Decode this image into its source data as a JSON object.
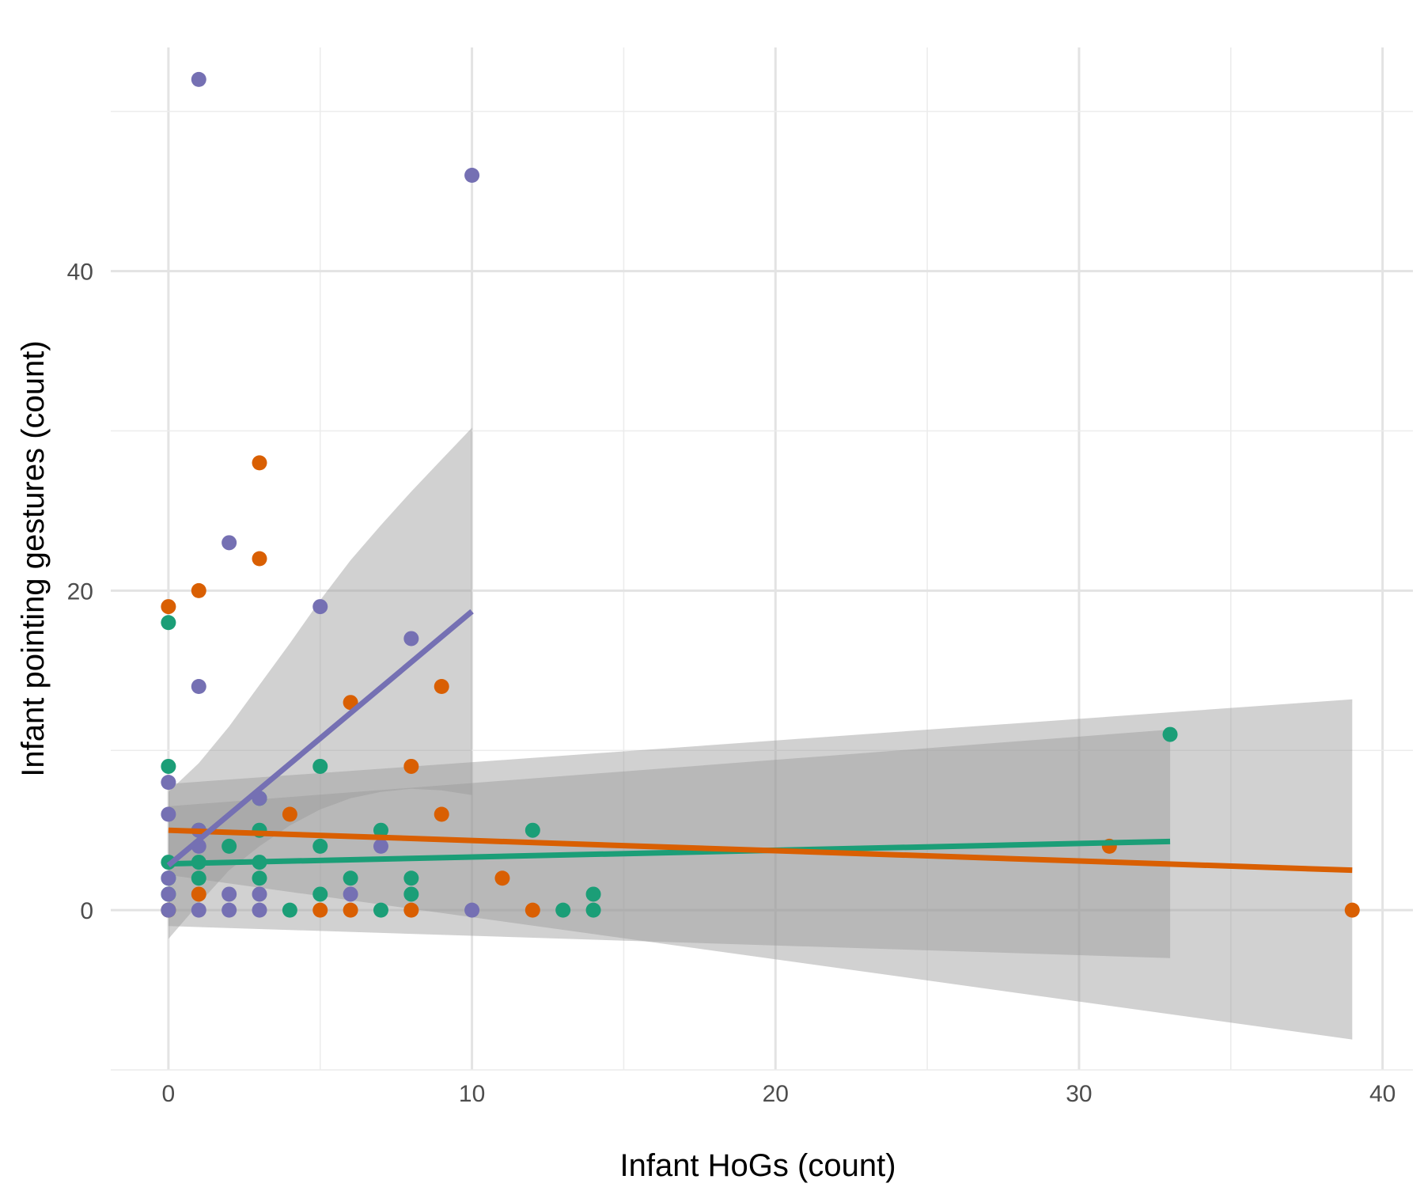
{
  "chart_data": {
    "type": "scatter",
    "title": "",
    "xlabel": "Infant HoGs (count)",
    "ylabel": "Infant pointing gestures (count)",
    "xlim": [
      -1.9,
      41
    ],
    "ylim": [
      -10,
      54
    ],
    "x_ticks": [
      0,
      10,
      20,
      30,
      40
    ],
    "y_ticks": [
      0,
      20,
      40
    ],
    "x_tick_labels": [
      "0",
      "10",
      "20",
      "30",
      "40"
    ],
    "y_tick_labels": [
      "0",
      "20",
      "40"
    ],
    "grid": true,
    "legend": "none",
    "series": [
      {
        "color": "#1b9e77",
        "points": [
          [
            0,
            0
          ],
          [
            0,
            1
          ],
          [
            0,
            2
          ],
          [
            0,
            3
          ],
          [
            0,
            9
          ],
          [
            0,
            18
          ],
          [
            1,
            2
          ],
          [
            1,
            3
          ],
          [
            1,
            5
          ],
          [
            2,
            4
          ],
          [
            3,
            2
          ],
          [
            3,
            3
          ],
          [
            3,
            5
          ],
          [
            3,
            7
          ],
          [
            4,
            0
          ],
          [
            5,
            1
          ],
          [
            5,
            4
          ],
          [
            5,
            9
          ],
          [
            6,
            2
          ],
          [
            7,
            0
          ],
          [
            7,
            5
          ],
          [
            8,
            1
          ],
          [
            8,
            2
          ],
          [
            12,
            5
          ],
          [
            13,
            0
          ],
          [
            14,
            0
          ],
          [
            14,
            1
          ],
          [
            33,
            11
          ]
        ],
        "fit": {
          "x0": 0,
          "y0": 2.9,
          "x1": 33,
          "y1": 4.3
        },
        "band": {
          "x": [
            0,
            33
          ],
          "lower": [
            -1.0,
            -3.0
          ],
          "upper": [
            6.5,
            11.3
          ]
        }
      },
      {
        "color": "#d95f02",
        "points": [
          [
            0,
            0
          ],
          [
            0,
            19
          ],
          [
            1,
            1
          ],
          [
            1,
            20
          ],
          [
            3,
            22
          ],
          [
            3,
            28
          ],
          [
            4,
            6
          ],
          [
            5,
            0
          ],
          [
            6,
            0
          ],
          [
            6,
            13
          ],
          [
            8,
            0
          ],
          [
            8,
            9
          ],
          [
            9,
            6
          ],
          [
            9,
            14
          ],
          [
            11,
            2
          ],
          [
            12,
            0
          ],
          [
            31,
            4
          ],
          [
            39,
            0
          ]
        ],
        "fit": {
          "x0": 0,
          "y0": 5.0,
          "x1": 39,
          "y1": 2.5
        },
        "band": {
          "x": [
            0,
            39
          ],
          "lower": [
            2.2,
            -8.1
          ],
          "upper": [
            7.9,
            13.2
          ]
        }
      },
      {
        "color": "#7570b3",
        "points": [
          [
            0,
            0
          ],
          [
            0,
            1
          ],
          [
            0,
            2
          ],
          [
            0,
            6
          ],
          [
            0,
            8
          ],
          [
            1,
            0
          ],
          [
            1,
            4
          ],
          [
            1,
            5
          ],
          [
            1,
            14
          ],
          [
            1,
            52
          ],
          [
            2,
            0
          ],
          [
            2,
            1
          ],
          [
            2,
            23
          ],
          [
            3,
            0
          ],
          [
            3,
            1
          ],
          [
            3,
            7
          ],
          [
            5,
            19
          ],
          [
            6,
            1
          ],
          [
            7,
            4
          ],
          [
            8,
            17
          ],
          [
            10,
            0
          ],
          [
            10,
            46
          ]
        ],
        "fit": {
          "x0": 0,
          "y0": 2.8,
          "x1": 10,
          "y1": 18.7
        },
        "band": {
          "x": [
            0,
            1,
            2,
            3,
            4,
            5,
            6,
            7,
            8,
            9,
            10
          ],
          "lower": [
            -1.8,
            0.4,
            2.5,
            4.0,
            5.3,
            6.3,
            7.0,
            7.4,
            7.6,
            7.5,
            7.2
          ],
          "upper": [
            7.4,
            9.2,
            11.5,
            14.1,
            16.7,
            19.4,
            21.9,
            24.1,
            26.2,
            28.2,
            30.2
          ]
        }
      }
    ]
  }
}
